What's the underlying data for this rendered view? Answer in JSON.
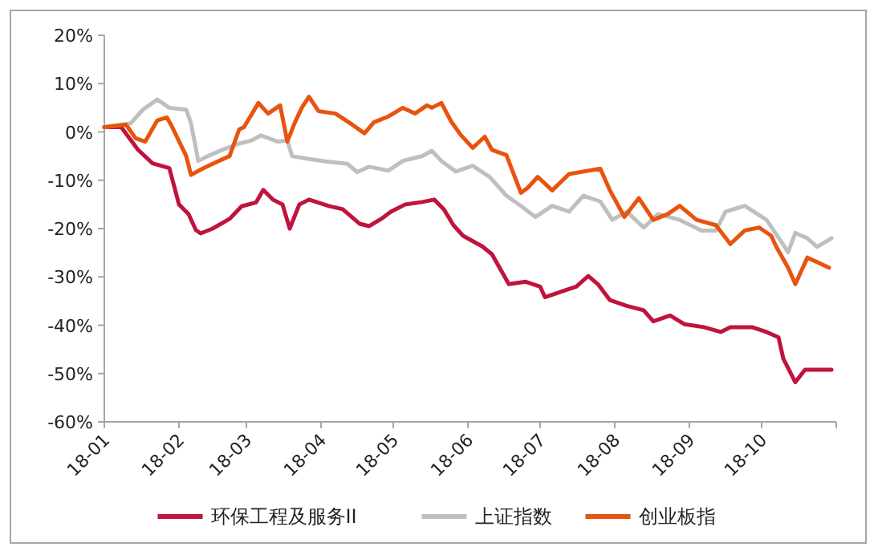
{
  "chart_data": {
    "type": "line",
    "xlim": [
      "--01-01",
      "--11-01"
    ],
    "ylim": [
      -60,
      20
    ],
    "xticks": [
      {
        "value": "--01-01",
        "label": "18-01"
      },
      {
        "value": "--02-01",
        "label": "18-02"
      },
      {
        "value": "--03-01",
        "label": "18-03"
      },
      {
        "value": "--04-01",
        "label": "18-04"
      },
      {
        "value": "--05-01",
        "label": "18-05"
      },
      {
        "value": "--06-01",
        "label": "18-06"
      },
      {
        "value": "--07-01",
        "label": "18-07"
      },
      {
        "value": "--08-01",
        "label": "18-08"
      },
      {
        "value": "--09-01",
        "label": "18-09"
      },
      {
        "value": "--10-01",
        "label": "18-10"
      },
      {
        "value": "--11-01",
        "label": null
      }
    ],
    "yticks": [
      {
        "value": 20,
        "label": "20%"
      },
      {
        "value": 10,
        "label": "10%"
      },
      {
        "value": 0,
        "label": "0%"
      },
      {
        "value": -10,
        "label": "-10%"
      },
      {
        "value": -20,
        "label": "-20%"
      },
      {
        "value": -30,
        "label": "-30%"
      },
      {
        "value": -40,
        "label": "-40%"
      },
      {
        "value": -50,
        "label": "-50%"
      },
      {
        "value": -60,
        "label": "-60%"
      }
    ],
    "grid": false,
    "legend": "bottom",
    "series": [
      {
        "name": "环保工程及服务II",
        "color": "#c0143c",
        "x": [
          "--01-01",
          "--01-08",
          "--01-15",
          "--01-21",
          "--01-28",
          "--02-01",
          "--02-05",
          "--02-08",
          "--02-10",
          "--02-15",
          "--02-22",
          "--02-27",
          "--03-05",
          "--03-08",
          "--03-12",
          "--03-16",
          "--03-19",
          "--03-23",
          "--03-27",
          "--04-04",
          "--04-10",
          "--04-17",
          "--04-21",
          "--04-26",
          "--04-30",
          "--05-06",
          "--05-13",
          "--05-18",
          "--05-22",
          "--05-26",
          "--05-30",
          "--06-07",
          "--06-11",
          "--06-18",
          "--06-25",
          "--07-01",
          "--07-03",
          "--07-10",
          "--07-16",
          "--07-21",
          "--07-25",
          "--07-30",
          "--08-06",
          "--08-13",
          "--08-17",
          "--08-24",
          "--08-30",
          "--09-07",
          "--09-14",
          "--09-18",
          "--09-27",
          "--10-03",
          "--10-08",
          "--10-10",
          "--10-15",
          "--10-19",
          "--10-23",
          "--10-30"
        ],
        "values": [
          1,
          1,
          -3.7,
          -6.5,
          -7.5,
          -15,
          -17,
          -20.3,
          -21,
          -20,
          -18,
          -15.4,
          -14.6,
          -12,
          -14,
          -15,
          -20,
          -15,
          -14,
          -15.3,
          -16,
          -19,
          -19.5,
          -18,
          -16.5,
          -15,
          -14.5,
          -14,
          -16,
          -19.3,
          -21.5,
          -23.7,
          -25.3,
          -31.5,
          -31,
          -32,
          -34.2,
          -33,
          -32,
          -29.8,
          -31.5,
          -34.8,
          -36,
          -36.9,
          -39.2,
          -38,
          -39.8,
          -40.4,
          -41.4,
          -40.4,
          -40.4,
          -41.4,
          -42.5,
          -46.9,
          -51.8,
          -49.2,
          -49.2,
          -49.2
        ]
      },
      {
        "name": "上证指数",
        "color": "#bfbfbf",
        "x": [
          "--01-01",
          "--01-12",
          "--01-17",
          "--01-23",
          "--01-28",
          "--02-04",
          "--02-06",
          "--02-09",
          "--02-13",
          "--02-20",
          "--02-26",
          "--03-03",
          "--03-07",
          "--03-14",
          "--03-18",
          "--03-20",
          "--03-27",
          "--04-03",
          "--04-12",
          "--04-16",
          "--04-21",
          "--04-29",
          "--05-05",
          "--05-13",
          "--05-17",
          "--05-21",
          "--05-27",
          "--06-03",
          "--06-10",
          "--06-17",
          "--06-23",
          "--06-29",
          "--07-06",
          "--07-13",
          "--07-19",
          "--07-26",
          "--07-31",
          "--08-06",
          "--08-13",
          "--08-19",
          "--08-28",
          "--09-06",
          "--09-12",
          "--09-16",
          "--09-24",
          "--10-03",
          "--10-09",
          "--10-12",
          "--10-15",
          "--10-20",
          "--10-24",
          "--10-30"
        ],
        "values": [
          1,
          1.8,
          4.6,
          6.7,
          5,
          4.6,
          1.8,
          -6,
          -5,
          -3.5,
          -2.4,
          -1.8,
          -0.7,
          -2,
          -1.8,
          -5,
          -5.6,
          -6.1,
          -6.6,
          -8.3,
          -7.2,
          -8,
          -6,
          -5,
          -3.9,
          -6,
          -8.2,
          -7,
          -9.3,
          -13.2,
          -15.3,
          -17.6,
          -15.3,
          -16.5,
          -13.2,
          -14.4,
          -18.2,
          -16.5,
          -19.8,
          -17,
          -18.2,
          -20.4,
          -20.4,
          -16.5,
          -15.3,
          -18.2,
          -22.6,
          -24.9,
          -20.9,
          -22,
          -23.8,
          -22
        ]
      },
      {
        "name": "创业板指",
        "color": "#e8530e",
        "x": [
          "--01-01",
          "--01-10",
          "--01-14",
          "--01-18",
          "--01-23",
          "--01-27",
          "--01-29",
          "--02-04",
          "--02-06",
          "--02-10",
          "--02-15",
          "--02-22",
          "--02-26",
          "--02-28",
          "--03-06",
          "--03-10",
          "--03-15",
          "--03-18",
          "--03-21",
          "--03-24",
          "--03-27",
          "--03-31",
          "--04-07",
          "--04-14",
          "--04-19",
          "--04-23",
          "--04-29",
          "--05-05",
          "--05-10",
          "--05-15",
          "--05-17",
          "--05-21",
          "--05-25",
          "--05-29",
          "--06-03",
          "--06-08",
          "--06-11",
          "--06-17",
          "--06-23",
          "--06-26",
          "--06-30",
          "--07-06",
          "--07-13",
          "--07-19",
          "--07-26",
          "--07-30",
          "--08-05",
          "--08-11",
          "--08-17",
          "--08-23",
          "--08-28",
          "--09-04",
          "--09-12",
          "--09-18",
          "--09-24",
          "--09-30",
          "--10-05",
          "--10-07",
          "--10-12",
          "--10-15",
          "--10-20",
          "--10-29"
        ],
        "values": [
          1,
          1.5,
          -1.3,
          -2,
          2.4,
          3,
          1.2,
          -5,
          -8.9,
          -7.8,
          -6.6,
          -5,
          0.5,
          1,
          6,
          3.8,
          5.5,
          -2,
          1.8,
          5,
          7.3,
          4.3,
          3.8,
          1.5,
          -0.3,
          2,
          3.2,
          5,
          3.8,
          5.5,
          5,
          6,
          2.2,
          -0.6,
          -3.3,
          -1,
          -3.7,
          -4.8,
          -12.6,
          -11.5,
          -9.3,
          -12.1,
          -8.7,
          -8.2,
          -7.6,
          -12.1,
          -17.6,
          -13.7,
          -18.2,
          -17,
          -15.3,
          -18.2,
          -19.3,
          -23.2,
          -20.4,
          -19.8,
          -21.5,
          -23.7,
          -28.1,
          -31.5,
          -26,
          -28.1
        ]
      }
    ]
  }
}
